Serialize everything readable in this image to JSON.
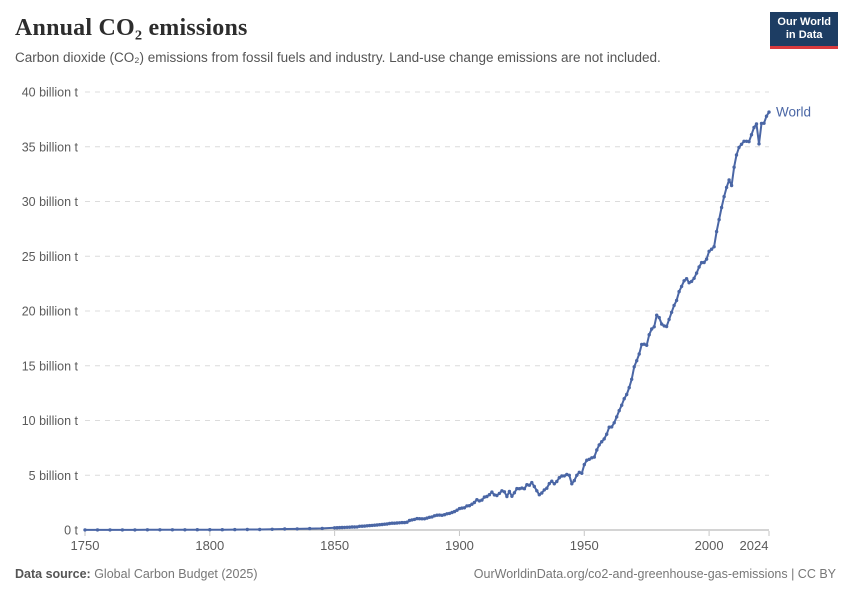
{
  "header": {
    "title": "Annual CO₂ emissions",
    "subtitle": "Carbon dioxide (CO₂) emissions from fossil fuels and industry. Land-use change emissions are not included.",
    "logo": {
      "line1": "Our World",
      "line2": "in Data",
      "bg_color": "#1d3d63",
      "accent_color": "#d93a3e"
    }
  },
  "footer": {
    "source_label": "Data source:",
    "source_value": " Global Carbon Budget (2025)",
    "attribution": "OurWorldinData.org/co2-and-greenhouse-gas-emissions | CC BY"
  },
  "chart_data": {
    "type": "line",
    "title": "Annual CO₂ emissions",
    "xlabel": "",
    "ylabel": "",
    "xlim": [
      1750,
      2024
    ],
    "ylim": [
      0,
      40
    ],
    "grid": "dashed-horizontal",
    "grid_color": "#dcdcdc",
    "baseline_color": "#a8a8a8",
    "tick_color": "#c6c6c6",
    "axis_text_color": "#5b5b5b",
    "xticks": [
      1750,
      1800,
      1850,
      1900,
      1950,
      2000,
      2024
    ],
    "yticks": [
      {
        "value": 0,
        "label": "0 t"
      },
      {
        "value": 5,
        "label": "5 billion t"
      },
      {
        "value": 10,
        "label": "10 billion t"
      },
      {
        "value": 15,
        "label": "15 billion t"
      },
      {
        "value": 20,
        "label": "20 billion t"
      },
      {
        "value": 25,
        "label": "25 billion t"
      },
      {
        "value": 30,
        "label": "30 billion t"
      },
      {
        "value": 35,
        "label": "35 billion t"
      },
      {
        "value": 40,
        "label": "40 billion t"
      }
    ],
    "series": [
      {
        "name": "World",
        "color": "#4a66a5",
        "unit": "billion t CO₂",
        "x": [
          1750,
          1755,
          1760,
          1765,
          1770,
          1775,
          1780,
          1785,
          1790,
          1795,
          1800,
          1805,
          1810,
          1815,
          1820,
          1825,
          1830,
          1835,
          1840,
          1845,
          1850,
          1851,
          1852,
          1853,
          1854,
          1855,
          1856,
          1857,
          1858,
          1859,
          1860,
          1861,
          1862,
          1863,
          1864,
          1865,
          1866,
          1867,
          1868,
          1869,
          1870,
          1871,
          1872,
          1873,
          1874,
          1875,
          1876,
          1877,
          1878,
          1879,
          1880,
          1881,
          1882,
          1883,
          1884,
          1885,
          1886,
          1887,
          1888,
          1889,
          1890,
          1891,
          1892,
          1893,
          1894,
          1895,
          1896,
          1897,
          1898,
          1899,
          1900,
          1901,
          1902,
          1903,
          1904,
          1905,
          1906,
          1907,
          1908,
          1909,
          1910,
          1911,
          1912,
          1913,
          1914,
          1915,
          1916,
          1917,
          1918,
          1919,
          1920,
          1921,
          1922,
          1923,
          1924,
          1925,
          1926,
          1927,
          1928,
          1929,
          1930,
          1931,
          1932,
          1933,
          1934,
          1935,
          1936,
          1937,
          1938,
          1939,
          1940,
          1941,
          1942,
          1943,
          1944,
          1945,
          1946,
          1947,
          1948,
          1949,
          1950,
          1951,
          1952,
          1953,
          1954,
          1955,
          1956,
          1957,
          1958,
          1959,
          1960,
          1961,
          1962,
          1963,
          1964,
          1965,
          1966,
          1967,
          1968,
          1969,
          1970,
          1971,
          1972,
          1973,
          1974,
          1975,
          1976,
          1977,
          1978,
          1979,
          1980,
          1981,
          1982,
          1983,
          1984,
          1985,
          1986,
          1987,
          1988,
          1989,
          1990,
          1991,
          1992,
          1993,
          1994,
          1995,
          1996,
          1997,
          1998,
          1999,
          2000,
          2001,
          2002,
          2003,
          2004,
          2005,
          2006,
          2007,
          2008,
          2009,
          2010,
          2011,
          2012,
          2013,
          2014,
          2015,
          2016,
          2017,
          2018,
          2019,
          2020,
          2021,
          2022,
          2023,
          2024
        ],
        "values": [
          0.01,
          0.01,
          0.01,
          0.01,
          0.01,
          0.02,
          0.02,
          0.02,
          0.02,
          0.03,
          0.03,
          0.03,
          0.04,
          0.05,
          0.05,
          0.06,
          0.09,
          0.1,
          0.13,
          0.15,
          0.2,
          0.21,
          0.22,
          0.23,
          0.24,
          0.25,
          0.26,
          0.27,
          0.27,
          0.28,
          0.34,
          0.35,
          0.36,
          0.38,
          0.4,
          0.42,
          0.44,
          0.46,
          0.48,
          0.5,
          0.53,
          0.55,
          0.59,
          0.62,
          0.62,
          0.64,
          0.66,
          0.68,
          0.68,
          0.71,
          0.87,
          0.92,
          0.97,
          1.04,
          1.03,
          1.02,
          1.02,
          1.09,
          1.16,
          1.2,
          1.3,
          1.35,
          1.36,
          1.34,
          1.4,
          1.48,
          1.52,
          1.6,
          1.68,
          1.81,
          1.95,
          2.0,
          2.03,
          2.2,
          2.22,
          2.36,
          2.51,
          2.77,
          2.66,
          2.73,
          3.0,
          3.06,
          3.22,
          3.46,
          3.21,
          3.15,
          3.34,
          3.58,
          3.49,
          3.06,
          3.52,
          3.08,
          3.4,
          3.78,
          3.77,
          3.83,
          3.77,
          4.14,
          4.09,
          4.33,
          3.97,
          3.58,
          3.22,
          3.38,
          3.66,
          3.82,
          4.24,
          4.46,
          4.22,
          4.43,
          4.78,
          4.93,
          4.94,
          5.07,
          5.0,
          4.22,
          4.51,
          5.0,
          5.27,
          5.18,
          5.97,
          6.37,
          6.46,
          6.59,
          6.66,
          7.31,
          7.77,
          8.06,
          8.32,
          8.75,
          9.39,
          9.42,
          9.79,
          10.33,
          10.9,
          11.4,
          11.99,
          12.37,
          13.0,
          13.76,
          14.9,
          15.46,
          16.07,
          16.94,
          16.97,
          16.87,
          17.84,
          18.36,
          18.56,
          19.62,
          19.4,
          18.8,
          18.64,
          18.58,
          19.23,
          19.88,
          20.51,
          20.97,
          21.77,
          22.25,
          22.76,
          22.95,
          22.58,
          22.7,
          22.99,
          23.46,
          24.02,
          24.42,
          24.43,
          24.74,
          25.45,
          25.64,
          25.87,
          27.25,
          28.35,
          29.45,
          30.45,
          31.29,
          31.96,
          31.46,
          33.13,
          34.25,
          34.94,
          35.22,
          35.5,
          35.5,
          35.47,
          36.1,
          36.76,
          37.08,
          35.26,
          37.12,
          37.15,
          37.79,
          38.16
        ]
      }
    ],
    "end_label": "World"
  }
}
